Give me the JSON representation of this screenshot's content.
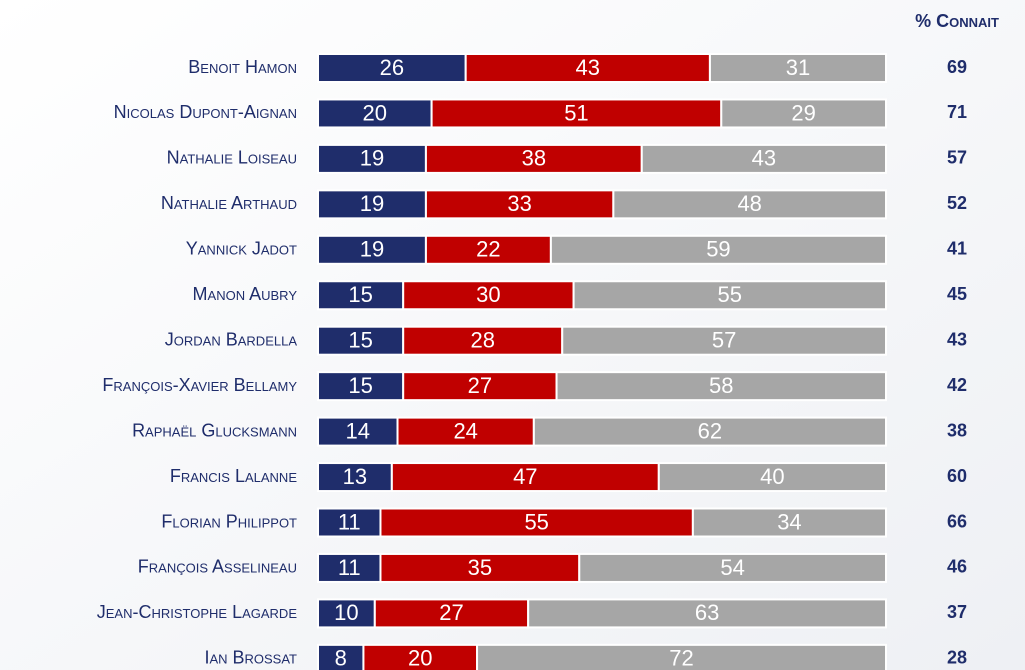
{
  "chart_data": {
    "type": "stacked-bar-horizontal",
    "categories": [
      "Benoit Hamon",
      "Nicolas Dupont-Aignan",
      "Nathalie Loiseau",
      "Nathalie Arthaud",
      "Yannick Jadot",
      "Manon Aubry",
      "Jordan Bardella",
      "François-Xavier Bellamy",
      "Raphaël Glucksmann",
      "Francis Lalanne",
      "Florian Philippot",
      "François Asselineau",
      "Jean-Christophe Lagarde",
      "Ian Brossat"
    ],
    "series": [
      {
        "color": "#1f2d6b",
        "values": [
          26,
          20,
          19,
          19,
          19,
          15,
          15,
          15,
          14,
          13,
          11,
          11,
          10,
          8
        ]
      },
      {
        "color": "#c00000",
        "values": [
          43,
          51,
          38,
          33,
          22,
          30,
          28,
          27,
          24,
          47,
          55,
          35,
          27,
          20
        ]
      },
      {
        "color": "#a6a6a6",
        "values": [
          31,
          29,
          43,
          48,
          59,
          55,
          57,
          58,
          62,
          40,
          34,
          54,
          63,
          72
        ]
      }
    ],
    "xlim": [
      0,
      100
    ],
    "connait_header": "% Connait",
    "connait": [
      69,
      71,
      57,
      52,
      41,
      45,
      43,
      42,
      38,
      60,
      66,
      46,
      37,
      28
    ]
  }
}
